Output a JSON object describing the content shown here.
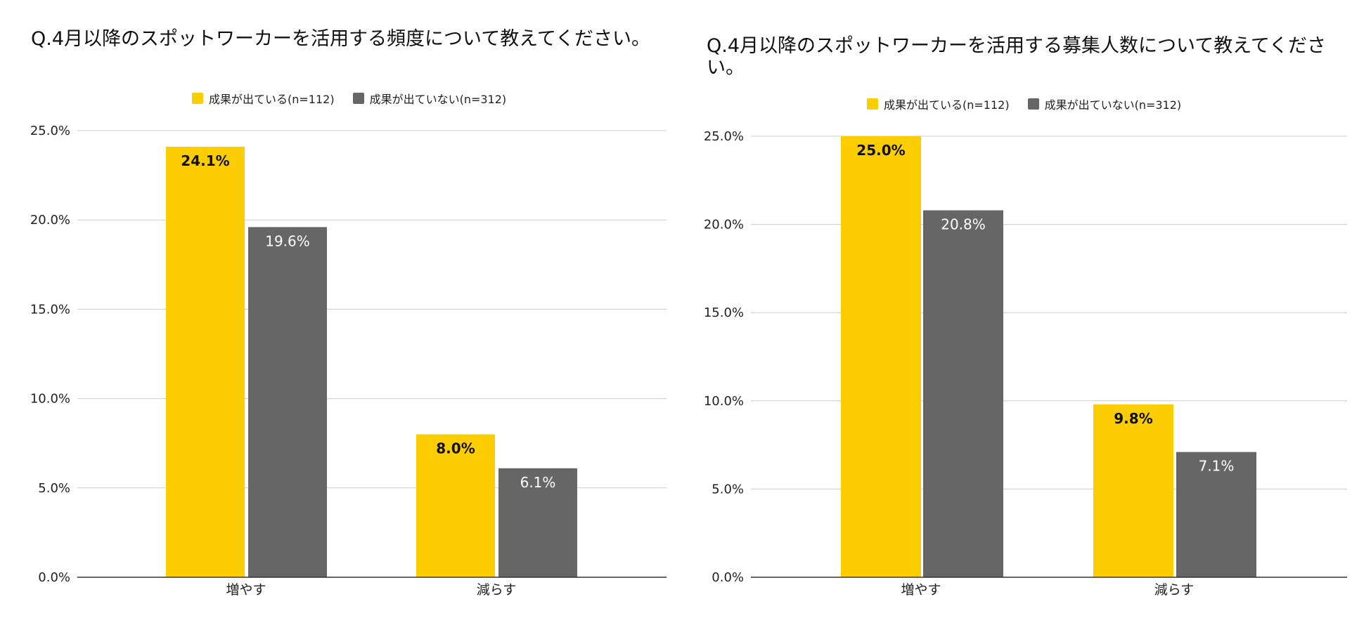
{
  "colors": {
    "series1": "#fccd00",
    "series2": "#666666",
    "grid": "#cccccc",
    "axis": "#333333"
  },
  "chart_data": [
    {
      "type": "bar",
      "title": "Q.4月以降のスポットワーカーを活用する頻度について教えてください。",
      "legend_position": "top",
      "grid": true,
      "categories": [
        "増やす",
        "減らす"
      ],
      "yticks": [
        "0.0%",
        "5.0%",
        "10.0%",
        "15.0%",
        "20.0%",
        "25.0%"
      ],
      "ylim": [
        0,
        25
      ],
      "series": [
        {
          "name": "成果が出ている(n=112)",
          "values": [
            24.1,
            8.0
          ],
          "labels": [
            "24.1%",
            "8.0%"
          ]
        },
        {
          "name": "成果が出ていない(n=312)",
          "values": [
            19.6,
            6.1
          ],
          "labels": [
            "19.6%",
            "6.1%"
          ]
        }
      ]
    },
    {
      "type": "bar",
      "title": "Q.4月以降のスポットワーカーを活用する募集人数について教えてください。",
      "legend_position": "top",
      "grid": true,
      "categories": [
        "増やす",
        "減らす"
      ],
      "yticks": [
        "0.0%",
        "5.0%",
        "10.0%",
        "15.0%",
        "20.0%",
        "25.0%"
      ],
      "ylim": [
        0,
        25
      ],
      "series": [
        {
          "name": "成果が出ている(n=112)",
          "values": [
            25.0,
            9.8
          ],
          "labels": [
            "25.0%",
            "9.8%"
          ]
        },
        {
          "name": "成果が出ていない(n=312)",
          "values": [
            20.8,
            7.1
          ],
          "labels": [
            "20.8%",
            "7.1%"
          ]
        }
      ]
    }
  ]
}
